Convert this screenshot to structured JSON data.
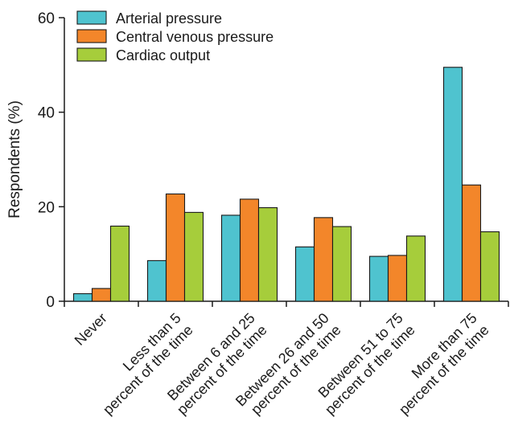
{
  "chart_data": {
    "type": "bar",
    "title": "",
    "xlabel": "",
    "ylabel": "Respondents (%)",
    "ylim": [
      0,
      60
    ],
    "yticks": [
      0,
      20,
      40,
      60
    ],
    "grid": false,
    "legend_position": "top-left",
    "categories": [
      [
        "Never"
      ],
      [
        "Less than 5",
        "percent of the time"
      ],
      [
        "Between 6 and 25",
        "percent of the time"
      ],
      [
        "Between 26 and 50",
        "percent of the time"
      ],
      [
        "Between 51 to 75",
        "percent of the time"
      ],
      [
        "More than 75",
        "percent of the time"
      ]
    ],
    "series": [
      {
        "name": "Arterial pressure",
        "color": "#4fc3cf",
        "values": [
          1.6,
          8.6,
          18.2,
          11.5,
          9.5,
          49.5
        ]
      },
      {
        "name": "Central venous pressure",
        "color": "#f3862a",
        "values": [
          2.7,
          22.7,
          21.6,
          17.7,
          9.7,
          24.6
        ]
      },
      {
        "name": "Cardiac output",
        "color": "#a6cd3b",
        "values": [
          15.9,
          18.8,
          19.8,
          15.8,
          13.8,
          14.7
        ]
      }
    ]
  }
}
